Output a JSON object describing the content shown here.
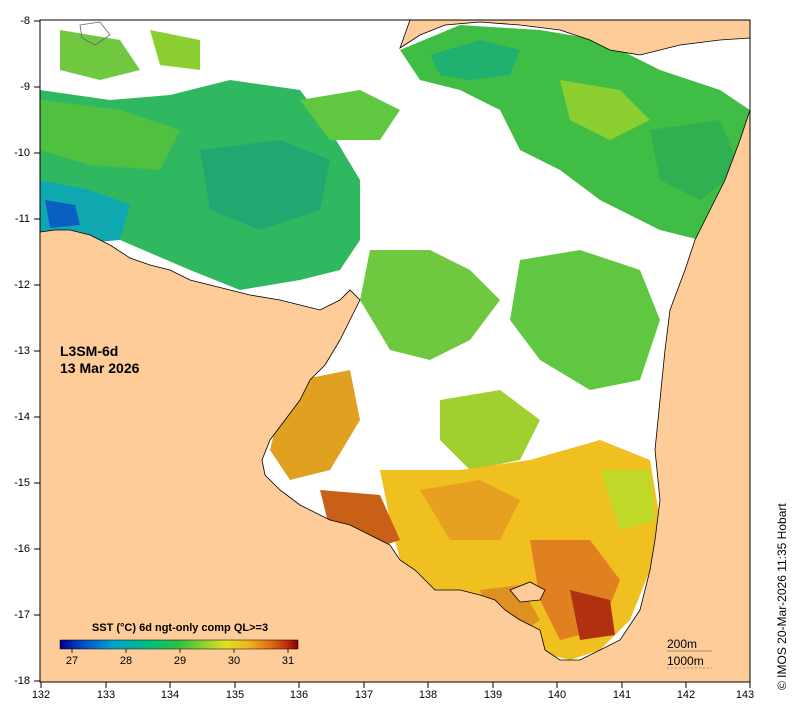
{
  "product": {
    "name": "L3SM-6d",
    "date": "13 Mar 2026"
  },
  "colorbar": {
    "title": "SST (°C) 6d ngt-only comp QL>=3",
    "ticks": [
      "27",
      "28",
      "29",
      "30",
      "31"
    ],
    "colors": [
      "#00008b",
      "#0050c8",
      "#00a0d0",
      "#00c07a",
      "#30c040",
      "#8bd030",
      "#e0e020",
      "#f0b020",
      "#e07010",
      "#c03010",
      "#8b0000"
    ]
  },
  "axes": {
    "lat_ticks": [
      "-8",
      "-9",
      "-10",
      "-11",
      "-12",
      "-13",
      "-14",
      "-15",
      "-16",
      "-17",
      "-18"
    ],
    "lon_ticks": [
      "132",
      "133",
      "134",
      "135",
      "136",
      "137",
      "138",
      "139",
      "140",
      "141",
      "142",
      "143"
    ]
  },
  "scale": {
    "isobath_1": "200m",
    "isobath_2": "1000m"
  },
  "credit": "© IMOS 20-Mar-2026 11:35 Hobart",
  "colors": {
    "land": "#fdcc98",
    "no_data": "#ffffff",
    "coast": "#000000"
  }
}
